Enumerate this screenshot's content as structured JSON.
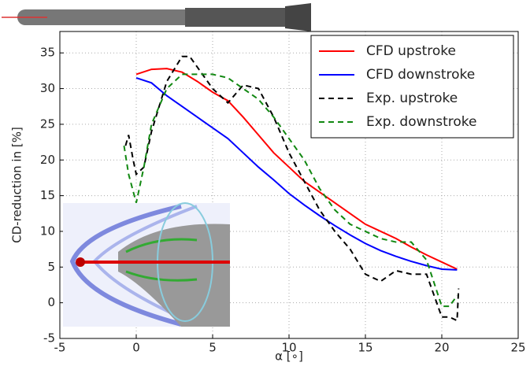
{
  "chart_data": {
    "type": "line",
    "xlabel": "α [∘]",
    "ylabel": "CD-reduction in  [%]",
    "xlim": [
      -5,
      25
    ],
    "xticks": [
      -5,
      0,
      5,
      10,
      15,
      20,
      25
    ],
    "ylim": [
      -5,
      38
    ],
    "yticks": [
      -5,
      0,
      5,
      10,
      15,
      20,
      25,
      30,
      35
    ],
    "grid": true,
    "legend": "upper right",
    "series": [
      {
        "name": "CFD upstroke",
        "color": "#ff0000",
        "style": "solid",
        "x": [
          0,
          1,
          2,
          3,
          4,
          5,
          6,
          7,
          8,
          9,
          10,
          11,
          12,
          13,
          14,
          15,
          16,
          17,
          18,
          19,
          20,
          21
        ],
        "values": [
          32,
          32.7,
          32.8,
          32.3,
          31,
          29.5,
          28.3,
          26,
          23.5,
          21,
          19,
          17,
          15.5,
          14,
          12.5,
          11,
          10,
          9,
          7.8,
          6.7,
          5.7,
          4.7
        ]
      },
      {
        "name": "CFD downstroke",
        "color": "#0000ff",
        "style": "solid",
        "x": [
          0,
          1,
          2,
          3,
          4,
          5,
          6,
          7,
          8,
          9,
          10,
          11,
          12,
          13,
          14,
          15,
          16,
          17,
          18,
          19,
          20,
          21
        ],
        "values": [
          31.5,
          30.8,
          29,
          27.5,
          26,
          24.5,
          23,
          21,
          19,
          17.2,
          15.3,
          13.7,
          12.2,
          10.8,
          9.5,
          8.3,
          7.3,
          6.5,
          5.8,
          5.2,
          4.7,
          4.6
        ]
      },
      {
        "name": "Exp. upstroke",
        "color": "#000000",
        "style": "dashed",
        "x": [
          -0.7,
          -0.5,
          -0.2,
          0,
          0.5,
          1,
          2,
          3,
          3.5,
          4,
          5,
          6,
          7,
          8,
          9,
          10,
          11,
          12,
          13,
          14,
          15,
          16,
          17,
          18,
          19,
          20,
          20.5,
          21,
          21.1
        ],
        "values": [
          22,
          23.5,
          20,
          18,
          19,
          24,
          31,
          34.5,
          34.5,
          33,
          30,
          28,
          30.5,
          30,
          26,
          21,
          17,
          13,
          10,
          7.5,
          4,
          3,
          4.5,
          4,
          4,
          -2,
          -2,
          -2.5,
          2
        ]
      },
      {
        "name": "Exp. downstroke",
        "color": "#118811",
        "style": "dashed",
        "x": [
          -0.8,
          -0.5,
          0,
          0.5,
          1,
          2,
          3,
          4,
          5,
          6,
          7,
          8,
          9,
          10,
          11,
          12,
          13,
          14,
          15,
          16,
          17,
          18,
          19,
          20,
          20.5,
          21
        ],
        "values": [
          22,
          18,
          14,
          19,
          25,
          30,
          32,
          32,
          32,
          31.5,
          30,
          28.5,
          26,
          23,
          20,
          16,
          13,
          11,
          10,
          9,
          8.5,
          8.5,
          6,
          -0.5,
          -0.5,
          1
        ]
      }
    ]
  }
}
